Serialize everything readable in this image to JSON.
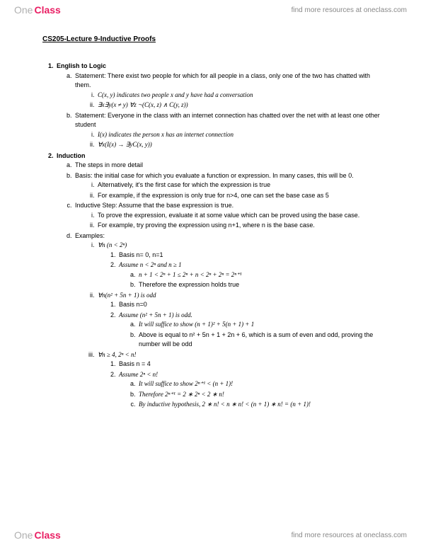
{
  "brand": {
    "one": "One",
    "class": "Class"
  },
  "header_link": "find more resources at oneclass.com",
  "footer_link": "find more resources at oneclass.com",
  "title": "CS205-Lecture 9-Inductive Proofs",
  "sections": {
    "s1_title": "English to Logic",
    "s1a": "Statement: There exist two people for which for all people in a class, only one of the two has chatted with them.",
    "s1a_i": "C(x, y) indicates two people x and y have had a conversation",
    "s1a_ii": "∃x∃y(x ≠ y) ∀z ¬(C(x, z) ∧ C(y, z))",
    "s1b": "Statement: Everyone in the class with an internet connection has chatted over the net with at least one other student",
    "s1b_i": "I(x) indicates the person x has an internet connection",
    "s1b_ii": "∀x(I(x) → ∃yC(x, y))",
    "s2_title": "Induction",
    "s2a": "The steps in more detail",
    "s2b": "Basis: the initial case for which you evaluate a function or expression. In many cases, this will be 0.",
    "s2b_i": "Alternatively, it's the first case for which the expression is true",
    "s2b_ii": "For example, if the expression is only true for n>4, one can set the base case as 5",
    "s2c": "Inductive Step: Assume that the base expression is true.",
    "s2c_i": "To prove the expression, evaluate it at some value which can be proved using the base case.",
    "s2c_ii": "For example, try proving the expression using n+1, where n is the base case.",
    "s2d": "Examples:",
    "s2d_i": "∀n (n < 2ⁿ)",
    "s2d_i_1": "Basis n= 0, n=1",
    "s2d_i_2": "Assume n < 2ⁿ and n ≥ 1",
    "s2d_i_2a": "n + 1 < 2ⁿ + 1 ≤ 2ⁿ + n < 2ⁿ + 2ⁿ = 2ⁿ⁺¹",
    "s2d_i_2b": "Therefore the expression holds true",
    "s2d_ii": "∀n(n² + 5n + 1) is odd",
    "s2d_ii_1": "Basis n=0",
    "s2d_ii_2": "Assume (n² + 5n + 1) is odd.",
    "s2d_ii_2a": "It will suffice to show (n + 1)² + 5(n + 1) + 1",
    "s2d_ii_2b": "Above is equal to n² + 5n + 1 + 2n + 6, which is a sum of even and odd, proving the number will be odd",
    "s2d_iii": "∀n ≥ 4, 2ⁿ < n!",
    "s2d_iii_1": "Basis n = 4",
    "s2d_iii_2": "Assume 2ⁿ < n!",
    "s2d_iii_2a": "It will suffice to show 2ⁿ⁺¹ < (n + 1)!",
    "s2d_iii_2b": "Therefore 2ⁿ⁺¹ = 2 ∗ 2ⁿ < 2 ∗ n!",
    "s2d_iii_2c": "By inductive hypothesis, 2 ∗ n! < n ∗ n! < (n + 1) ∗ n! = (n + 1)!"
  }
}
